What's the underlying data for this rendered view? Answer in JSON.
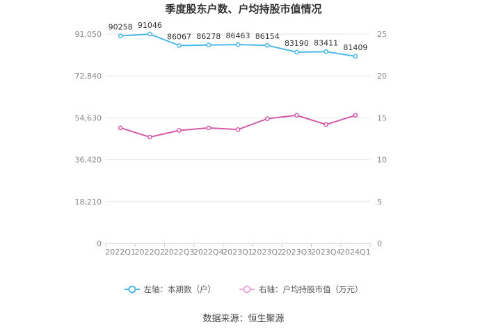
{
  "chart_data": {
    "type": "line",
    "title": "季度股东户数、户均持股市值情况",
    "categories": [
      "2022Q1",
      "2022Q2",
      "2022Q3",
      "2022Q4",
      "2023Q1",
      "2023Q2",
      "2023Q3",
      "2023Q4",
      "2024Q1"
    ],
    "series": [
      {
        "name": "左轴：本期数（户）",
        "axis": "left",
        "color": "#4db8e8",
        "values": [
          90258,
          91046,
          86067,
          86278,
          86463,
          86154,
          83190,
          83411,
          81409
        ]
      },
      {
        "name": "右轴：户均持股市值（万元）",
        "axis": "right",
        "color": "#d45aa8",
        "values": [
          13.8,
          12.7,
          13.5,
          13.8,
          13.6,
          14.9,
          15.3,
          14.2,
          15.3
        ]
      }
    ],
    "left_axis": {
      "ticks": [
        "0",
        "18,210",
        "36,420",
        "54,630",
        "72,840",
        "91,050"
      ],
      "ylim": [
        0,
        91050
      ]
    },
    "right_axis": {
      "ticks": [
        "0",
        "5",
        "10",
        "15",
        "20",
        "25"
      ],
      "ylim": [
        0,
        25
      ]
    },
    "grid": true,
    "legend": "bottom",
    "source": "数据来源：恒生聚源"
  }
}
